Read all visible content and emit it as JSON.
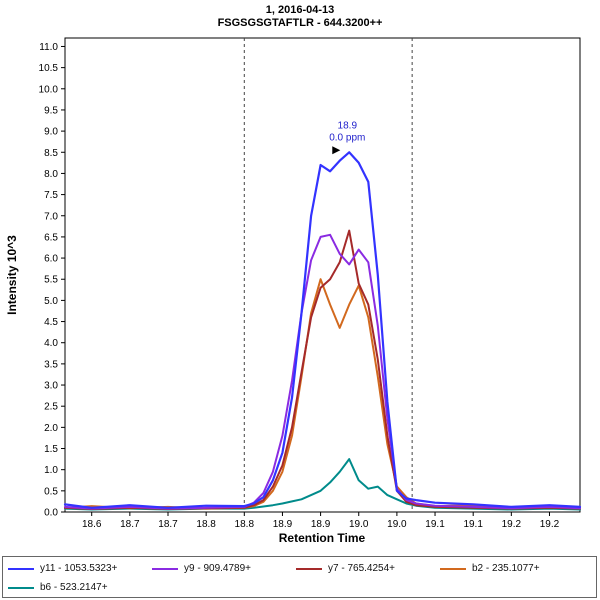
{
  "title": {
    "line1": "1, 2016-04-13",
    "line2": "FSGSGSGTAFTLR - 644.3200++"
  },
  "axes": {
    "x_label": "Retention Time",
    "y_label": "Intensity 10^3"
  },
  "colors": {
    "annotation_text": "#2222cc",
    "boundary_line": "#444444",
    "axis": "#000000"
  },
  "chart_data": {
    "type": "line",
    "title": "1, 2016-04-13 — FSGSGSGTAFTLR - 644.3200++",
    "xlabel": "Retention Time",
    "ylabel": "Intensity 10^3",
    "xlim": [
      18.565,
      19.24
    ],
    "ylim": [
      0,
      11.2
    ],
    "grid": false,
    "legend_position": "bottom",
    "x_ticks": {
      "values": [
        18.6,
        18.65,
        18.7,
        18.75,
        18.8,
        18.85,
        18.9,
        18.95,
        19.0,
        19.05,
        19.1,
        19.15,
        19.2
      ],
      "labels": [
        "18.6",
        "18.7",
        "18.7",
        "18.8",
        "18.8",
        "18.9",
        "18.9",
        "19.0",
        "19.0",
        "19.1",
        "19.1",
        "19.2",
        "19.2"
      ]
    },
    "y_ticks": {
      "values": [
        0,
        0.5,
        1,
        1.5,
        2,
        2.5,
        3,
        3.5,
        4,
        4.5,
        5,
        5.5,
        6,
        6.5,
        7,
        7.5,
        8,
        8.5,
        9,
        9.5,
        10,
        10.5,
        11
      ],
      "labels": [
        "0.0",
        "0.5",
        "1.0",
        "1.5",
        "2.0",
        "2.5",
        "3.0",
        "3.5",
        "4.0",
        "4.5",
        "5.0",
        "5.5",
        "6.0",
        "6.5",
        "7.0",
        "7.5",
        "8.0",
        "8.5",
        "9.0",
        "9.5",
        "10.0",
        "10.5",
        "11.0"
      ]
    },
    "x": [
      18.565,
      18.6,
      18.65,
      18.7,
      18.75,
      18.8,
      18.8125,
      18.825,
      18.8375,
      18.85,
      18.8625,
      18.875,
      18.8875,
      18.9,
      18.9125,
      18.925,
      18.9375,
      18.95,
      18.9625,
      18.975,
      18.9875,
      19.0,
      19.0125,
      19.025,
      19.05,
      19.1,
      19.15,
      19.2,
      19.24
    ],
    "series": [
      {
        "id": "y11",
        "name": "y11 - 1053.5323+",
        "color": "#3333ff",
        "width": 2.2,
        "values": [
          0.18,
          0.1,
          0.16,
          0.1,
          0.15,
          0.14,
          0.2,
          0.35,
          0.75,
          1.4,
          2.7,
          4.7,
          7.0,
          8.2,
          8.05,
          8.3,
          8.5,
          8.25,
          7.8,
          5.6,
          2.6,
          0.5,
          0.32,
          0.28,
          0.22,
          0.18,
          0.12,
          0.16,
          0.12
        ]
      },
      {
        "id": "y9",
        "name": "y9 - 909.4789+",
        "color": "#8a2be2",
        "width": 2,
        "values": [
          0.12,
          0.08,
          0.12,
          0.08,
          0.1,
          0.12,
          0.22,
          0.45,
          0.95,
          1.8,
          3.1,
          4.7,
          5.95,
          6.5,
          6.55,
          6.1,
          5.85,
          6.2,
          5.9,
          4.4,
          2.2,
          0.55,
          0.28,
          0.2,
          0.15,
          0.12,
          0.09,
          0.12,
          0.09
        ]
      },
      {
        "id": "y7",
        "name": "y7 - 765.4254+",
        "color": "#a52a2a",
        "width": 2,
        "values": [
          0.1,
          0.07,
          0.1,
          0.07,
          0.09,
          0.1,
          0.16,
          0.28,
          0.6,
          1.1,
          2.0,
          3.3,
          4.6,
          5.3,
          5.5,
          5.9,
          6.65,
          5.4,
          4.9,
          3.6,
          1.8,
          0.5,
          0.24,
          0.16,
          0.12,
          0.1,
          0.08,
          0.1,
          0.08
        ]
      },
      {
        "id": "b2",
        "name": "b2 - 235.1077+",
        "color": "#d2691e",
        "width": 2,
        "values": [
          0.1,
          0.14,
          0.09,
          0.12,
          0.08,
          0.1,
          0.14,
          0.24,
          0.5,
          0.95,
          1.8,
          3.2,
          4.7,
          5.5,
          4.9,
          4.35,
          4.9,
          5.35,
          4.6,
          3.2,
          1.6,
          0.6,
          0.35,
          0.2,
          0.14,
          0.16,
          0.1,
          0.14,
          0.1
        ]
      },
      {
        "id": "b6",
        "name": "b6 - 523.2147+",
        "color": "#008b8b",
        "width": 2,
        "values": [
          0.08,
          0.06,
          0.08,
          0.06,
          0.08,
          0.08,
          0.1,
          0.13,
          0.16,
          0.2,
          0.25,
          0.3,
          0.4,
          0.5,
          0.7,
          0.95,
          1.25,
          0.75,
          0.55,
          0.6,
          0.4,
          0.3,
          0.2,
          0.15,
          0.1,
          0.08,
          0.06,
          0.08,
          0.06
        ]
      }
    ],
    "peak_boundaries": [
      18.8,
      19.02
    ],
    "annotation": {
      "rt_label": "18.9",
      "ppm_label": "0.0 ppm",
      "x": 18.935,
      "y": 8.5
    }
  }
}
